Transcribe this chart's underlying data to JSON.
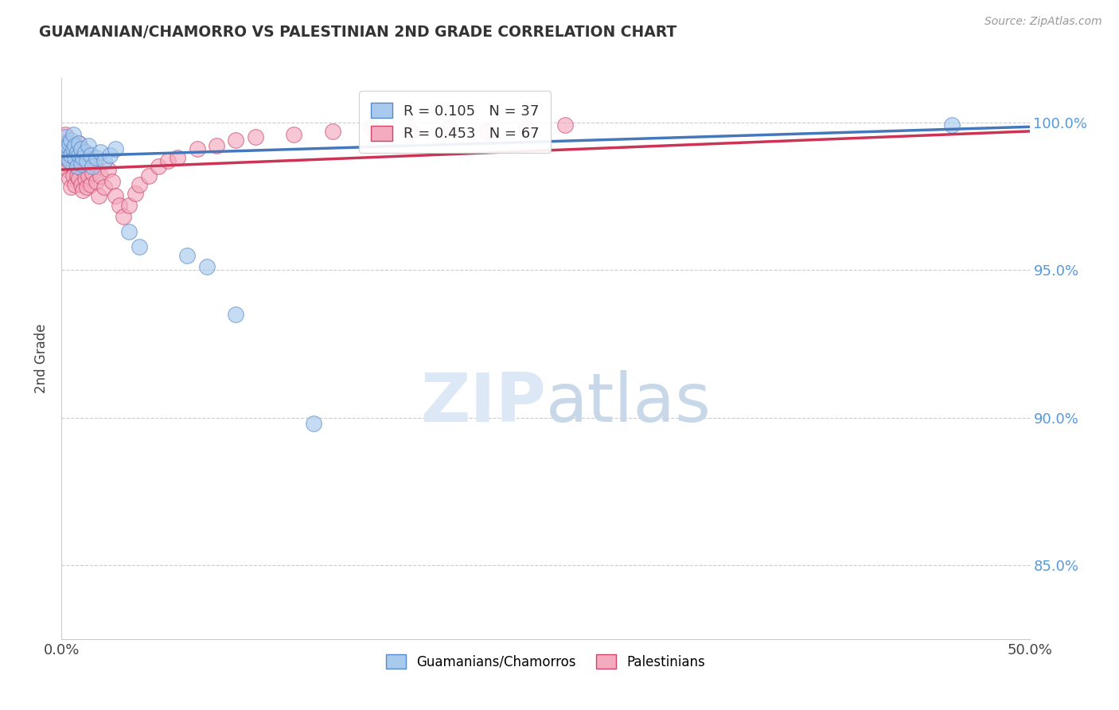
{
  "title": "GUAMANIAN/CHAMORRO VS PALESTINIAN 2ND GRADE CORRELATION CHART",
  "source_text": "Source: ZipAtlas.com",
  "ylabel": "2nd Grade",
  "xlim": [
    0.0,
    0.5
  ],
  "ylim": [
    0.825,
    1.015
  ],
  "ytick_positions": [
    1.0,
    0.95,
    0.9,
    0.85
  ],
  "ytick_labels": [
    "100.0%",
    "95.0%",
    "90.0%",
    "85.0%"
  ],
  "xtick_positions": [
    0.0,
    0.1,
    0.2,
    0.3,
    0.4,
    0.5
  ],
  "xtick_labels": [
    "0.0%",
    "",
    "",
    "",
    "",
    "50.0%"
  ],
  "blue_fill": "#A8CAED",
  "blue_edge": "#5588CC",
  "pink_fill": "#F4AABF",
  "pink_edge": "#CC4466",
  "blue_line_color": "#4477BB",
  "pink_line_color": "#CC3355",
  "R_blue": 0.105,
  "N_blue": 37,
  "R_pink": 0.453,
  "N_pink": 67,
  "legend_blue_label": "Guamanians/Chamorros",
  "legend_pink_label": "Palestinians",
  "watermark_zip": "ZIP",
  "watermark_atlas": "atlas",
  "background_color": "#ffffff",
  "grid_color": "#cccccc",
  "ytick_color": "#5599DD",
  "blue_points_x": [
    0.001,
    0.002,
    0.002,
    0.003,
    0.003,
    0.004,
    0.004,
    0.005,
    0.005,
    0.006,
    0.006,
    0.007,
    0.007,
    0.008,
    0.008,
    0.009,
    0.009,
    0.01,
    0.01,
    0.011,
    0.012,
    0.013,
    0.014,
    0.015,
    0.016,
    0.018,
    0.02,
    0.022,
    0.025,
    0.028,
    0.035,
    0.04,
    0.065,
    0.075,
    0.09,
    0.13,
    0.46
  ],
  "blue_points_y": [
    0.993,
    0.99,
    0.995,
    0.988,
    0.992,
    0.987,
    0.993,
    0.989,
    0.994,
    0.991,
    0.996,
    0.988,
    0.992,
    0.99,
    0.985,
    0.989,
    0.993,
    0.991,
    0.986,
    0.988,
    0.99,
    0.987,
    0.992,
    0.989,
    0.985,
    0.988,
    0.99,
    0.987,
    0.989,
    0.991,
    0.963,
    0.958,
    0.955,
    0.951,
    0.935,
    0.898,
    0.999
  ],
  "pink_points_x": [
    0.001,
    0.001,
    0.002,
    0.002,
    0.003,
    0.003,
    0.003,
    0.004,
    0.004,
    0.004,
    0.005,
    0.005,
    0.005,
    0.006,
    0.006,
    0.006,
    0.007,
    0.007,
    0.007,
    0.008,
    0.008,
    0.008,
    0.009,
    0.009,
    0.009,
    0.01,
    0.01,
    0.01,
    0.011,
    0.011,
    0.012,
    0.012,
    0.013,
    0.013,
    0.014,
    0.015,
    0.015,
    0.016,
    0.017,
    0.018,
    0.019,
    0.02,
    0.022,
    0.024,
    0.026,
    0.028,
    0.03,
    0.032,
    0.035,
    0.038,
    0.04,
    0.045,
    0.05,
    0.055,
    0.06,
    0.07,
    0.08,
    0.09,
    0.1,
    0.12,
    0.14,
    0.16,
    0.18,
    0.2,
    0.22,
    0.24,
    0.26
  ],
  "pink_points_y": [
    0.992,
    0.985,
    0.996,
    0.988,
    0.993,
    0.984,
    0.99,
    0.987,
    0.992,
    0.981,
    0.988,
    0.993,
    0.978,
    0.985,
    0.99,
    0.982,
    0.987,
    0.992,
    0.979,
    0.985,
    0.99,
    0.982,
    0.988,
    0.981,
    0.993,
    0.986,
    0.979,
    0.991,
    0.984,
    0.977,
    0.988,
    0.981,
    0.985,
    0.978,
    0.982,
    0.987,
    0.979,
    0.983,
    0.986,
    0.98,
    0.975,
    0.982,
    0.978,
    0.984,
    0.98,
    0.975,
    0.972,
    0.968,
    0.972,
    0.976,
    0.979,
    0.982,
    0.985,
    0.987,
    0.988,
    0.991,
    0.992,
    0.994,
    0.995,
    0.996,
    0.997,
    0.998,
    0.997,
    0.998,
    0.997,
    0.998,
    0.999
  ]
}
